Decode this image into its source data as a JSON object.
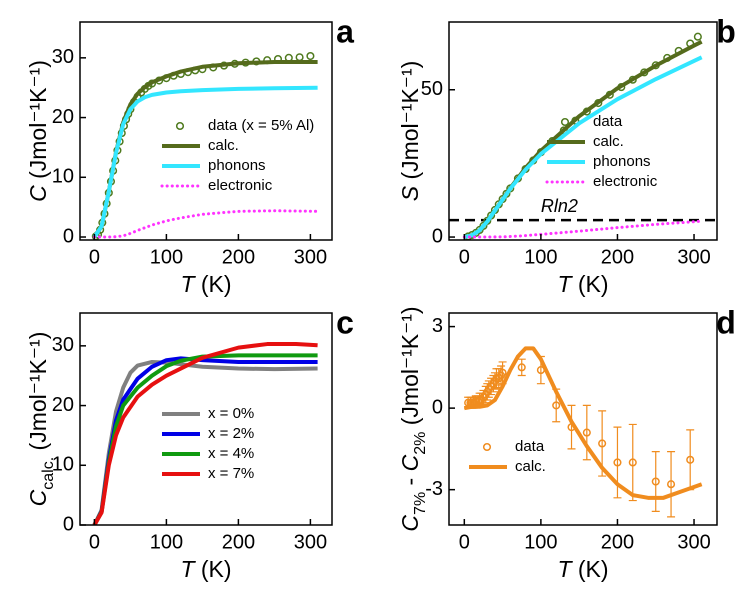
{
  "chart_data": [
    {
      "type": "line",
      "panel_label": "a",
      "xlabel": [
        {
          "text": "T",
          "italic": true
        },
        {
          "text": " (K)"
        }
      ],
      "ylabel": [
        {
          "text": "C",
          "italic": true
        },
        {
          "text": " (Jmol⁻¹K⁻¹)"
        }
      ],
      "xlim": [
        -20,
        330
      ],
      "ylim": [
        -0.5,
        36
      ],
      "xticks": [
        0,
        100,
        200,
        300
      ],
      "yticks": [
        0,
        10,
        20,
        30
      ],
      "legend_position": "center right",
      "series": [
        {
          "name": "data (x = 5% Al)",
          "color": "#4f7a1e",
          "style": "markers",
          "x": [
            2,
            5,
            8,
            11,
            14,
            17,
            20,
            23,
            26,
            29,
            32,
            35,
            38,
            41,
            44,
            47,
            50,
            55,
            60,
            65,
            70,
            75,
            80,
            90,
            100,
            110,
            120,
            130,
            140,
            150,
            165,
            180,
            195,
            210,
            225,
            240,
            255,
            270,
            285,
            300
          ],
          "values": [
            0.1,
            0.4,
            1.2,
            2.4,
            3.9,
            5.6,
            7.4,
            9.3,
            11.1,
            12.8,
            14.5,
            16,
            17.4,
            18.6,
            19.7,
            20.6,
            21.4,
            22.6,
            23.5,
            24.2,
            24.8,
            25.3,
            25.7,
            26.2,
            26.6,
            27,
            27.3,
            27.6,
            27.9,
            28.1,
            28.4,
            28.7,
            29,
            29.2,
            29.4,
            29.6,
            29.8,
            30,
            30.1,
            30.3
          ]
        },
        {
          "name": "calc.",
          "color": "#556b1c",
          "style": "solid",
          "x": [
            0,
            10,
            20,
            30,
            40,
            50,
            60,
            70,
            80,
            100,
            120,
            150,
            200,
            250,
            310
          ],
          "values": [
            0,
            1.8,
            7.6,
            14.2,
            19.2,
            22.2,
            24,
            25.1,
            25.9,
            26.9,
            27.7,
            28.5,
            29.1,
            29.3,
            29.3
          ]
        },
        {
          "name": "phonons",
          "color": "#33e6ff",
          "style": "solid",
          "x": [
            0,
            10,
            20,
            30,
            40,
            50,
            60,
            70,
            80,
            100,
            120,
            150,
            200,
            250,
            310
          ],
          "values": [
            0,
            1.8,
            7.6,
            14.1,
            18.9,
            21.4,
            22.7,
            23.4,
            23.8,
            24.2,
            24.4,
            24.6,
            24.8,
            24.9,
            25
          ]
        },
        {
          "name": "electronic",
          "color": "#ff33ff",
          "style": "dotted",
          "x": [
            0,
            20,
            30,
            40,
            50,
            60,
            80,
            100,
            120,
            150,
            200,
            250,
            310
          ],
          "values": [
            0,
            0,
            0.05,
            0.2,
            0.6,
            1.1,
            2,
            2.7,
            3.2,
            3.8,
            4.3,
            4.4,
            4.3
          ]
        }
      ]
    },
    {
      "type": "line",
      "panel_label": "b",
      "xlabel": [
        {
          "text": "T",
          "italic": true
        },
        {
          "text": " (K)"
        }
      ],
      "ylabel": [
        {
          "text": "S",
          "italic": true
        },
        {
          "text": " (Jmol⁻¹K⁻¹)"
        }
      ],
      "xlim": [
        -20,
        330
      ],
      "ylim": [
        -1,
        73
      ],
      "xticks": [
        0,
        100,
        200,
        300
      ],
      "yticks": [
        0,
        50
      ],
      "legend_position": "lower right",
      "hline": {
        "value": 5.76,
        "label": "Rln2"
      },
      "series": [
        {
          "name": "data",
          "color": "#4f7a1e",
          "style": "markers",
          "x": [
            5,
            10,
            15,
            20,
            25,
            30,
            35,
            40,
            45,
            50,
            55,
            60,
            70,
            80,
            90,
            100,
            115,
            130,
            145,
            160,
            175,
            190,
            205,
            220,
            235,
            250,
            265,
            280,
            295,
            305
          ],
          "values": [
            0.2,
            0.7,
            1.4,
            2.4,
            3.8,
            5.5,
            7.3,
            9.2,
            11.1,
            12.9,
            14.7,
            16.5,
            19.9,
            23.1,
            26,
            28.8,
            32.6,
            36.2,
            39.5,
            42.6,
            45.5,
            48.3,
            50.9,
            53.4,
            55.9,
            58.3,
            60.8,
            63.2,
            65.7,
            68
          ]
        },
        {
          "name": "calc.",
          "color": "#556b1c",
          "style": "solid",
          "x": [
            0,
            10,
            20,
            30,
            40,
            60,
            80,
            100,
            150,
            200,
            250,
            300,
            310
          ],
          "values": [
            0,
            0.6,
            2.3,
            5.3,
            9,
            16.6,
            23.5,
            29.3,
            41,
            50.5,
            58.2,
            65,
            66.3
          ]
        },
        {
          "name": "phonons",
          "color": "#33e6ff",
          "style": "solid",
          "x": [
            0,
            10,
            20,
            30,
            40,
            60,
            80,
            100,
            150,
            200,
            250,
            300,
            310
          ],
          "values": [
            0,
            0.6,
            2.3,
            5.3,
            9,
            16.4,
            22.9,
            28.2,
            38.6,
            46.8,
            53.6,
            59.8,
            61
          ]
        },
        {
          "name": "electronic",
          "color": "#ff33ff",
          "style": "dotted",
          "x": [
            0,
            50,
            75,
            100,
            150,
            200,
            250,
            300,
            310
          ],
          "values": [
            0,
            0.05,
            0.4,
            0.9,
            2,
            3.2,
            4.3,
            5.2,
            5.4
          ]
        }
      ]
    },
    {
      "type": "line",
      "panel_label": "c",
      "xlabel": [
        {
          "text": "T",
          "italic": true
        },
        {
          "text": " (K)"
        }
      ],
      "ylabel": [
        {
          "text": "C",
          "italic": true
        },
        {
          "text": "calc.",
          "sub": true
        },
        {
          "text": " (Jmol⁻¹K⁻¹)"
        }
      ],
      "xlim": [
        -20,
        330
      ],
      "ylim": [
        0,
        35.5
      ],
      "xticks": [
        0,
        100,
        200,
        300
      ],
      "yticks": [
        0,
        10,
        20,
        30
      ],
      "legend_position": "center right",
      "series": [
        {
          "name": "x = 0%",
          "color": "#808080",
          "style": "solid",
          "x": [
            0,
            10,
            20,
            30,
            40,
            50,
            60,
            80,
            100,
            150,
            200,
            250,
            310
          ],
          "values": [
            0,
            2.5,
            12,
            19,
            23,
            25.5,
            26.7,
            27.3,
            27.2,
            26.5,
            26.2,
            26.1,
            26.2
          ]
        },
        {
          "name": "x = 2%",
          "color": "#0000e6",
          "style": "solid",
          "x": [
            0,
            10,
            20,
            30,
            40,
            60,
            80,
            100,
            120,
            150,
            200,
            250,
            310
          ],
          "values": [
            0,
            2.3,
            11,
            17.5,
            21,
            24.5,
            26.5,
            27.6,
            27.9,
            27.6,
            27.3,
            27.3,
            27.3
          ]
        },
        {
          "name": "x = 4%",
          "color": "#109a10",
          "style": "solid",
          "x": [
            0,
            10,
            20,
            30,
            40,
            60,
            80,
            100,
            120,
            150,
            200,
            250,
            310
          ],
          "values": [
            0,
            2.2,
            10.5,
            16.5,
            20,
            23,
            25,
            26.6,
            27.5,
            28.2,
            28.4,
            28.4,
            28.4
          ]
        },
        {
          "name": "x = 7%",
          "color": "#e61010",
          "style": "solid",
          "x": [
            0,
            10,
            20,
            30,
            40,
            60,
            80,
            100,
            150,
            200,
            240,
            280,
            310
          ],
          "values": [
            0,
            2.1,
            10,
            15,
            18,
            21.5,
            23.5,
            25,
            28,
            29.7,
            30.3,
            30.3,
            30.1
          ]
        }
      ]
    },
    {
      "type": "line",
      "panel_label": "d",
      "xlabel": [
        {
          "text": "T",
          "italic": true
        },
        {
          "text": " (K)"
        }
      ],
      "ylabel": [
        {
          "text": "C",
          "italic": true
        },
        {
          "text": "7%",
          "sub": true
        },
        {
          "text": " - "
        },
        {
          "text": "C",
          "italic": true
        },
        {
          "text": "2%",
          "sub": true
        },
        {
          "text": " (Jmol⁻¹K⁻¹)"
        }
      ],
      "xlim": [
        -20,
        330
      ],
      "ylim": [
        -4.3,
        3.5
      ],
      "xticks": [
        0,
        100,
        200,
        300
      ],
      "yticks": [
        -3,
        0,
        3
      ],
      "legend_position": "lower left",
      "series": [
        {
          "name": "data",
          "color": "#f08c1e",
          "style": "markers",
          "x": [
            5,
            8,
            10,
            12,
            15,
            18,
            20,
            22,
            25,
            28,
            30,
            32,
            35,
            38,
            40,
            42,
            45,
            48,
            50,
            75,
            100,
            120,
            140,
            160,
            180,
            200,
            220,
            250,
            270,
            295
          ],
          "values": [
            0.2,
            0.2,
            0.2,
            0.2,
            0.25,
            0.25,
            0.3,
            0.3,
            0.4,
            0.5,
            0.6,
            0.7,
            0.8,
            0.9,
            1,
            1.1,
            1.1,
            1.2,
            1.3,
            1.5,
            1.4,
            0.1,
            -0.7,
            -0.9,
            -1.3,
            -2,
            -2,
            -2.7,
            -2.8,
            -1.9
          ],
          "errors": [
            0.2,
            0.2,
            0.2,
            0.2,
            0.2,
            0.2,
            0.25,
            0.25,
            0.25,
            0.3,
            0.3,
            0.3,
            0.3,
            0.3,
            0.3,
            0.35,
            0.35,
            0.35,
            0.4,
            0.3,
            0.5,
            0.6,
            0.8,
            1,
            1.2,
            1.3,
            1.4,
            1.1,
            1.2,
            1.1
          ]
        },
        {
          "name": "calc.",
          "color": "#f08c1e",
          "style": "solid",
          "x": [
            0,
            10,
            20,
            30,
            40,
            50,
            60,
            70,
            80,
            90,
            100,
            120,
            140,
            160,
            180,
            200,
            220,
            240,
            260,
            280,
            310
          ],
          "values": [
            0,
            0.05,
            0.05,
            0.1,
            0.3,
            0.8,
            1.4,
            1.9,
            2.2,
            2.2,
            1.8,
            0.6,
            -0.5,
            -1.4,
            -2.2,
            -2.8,
            -3.2,
            -3.3,
            -3.3,
            -3.1,
            -2.8
          ]
        }
      ]
    }
  ]
}
